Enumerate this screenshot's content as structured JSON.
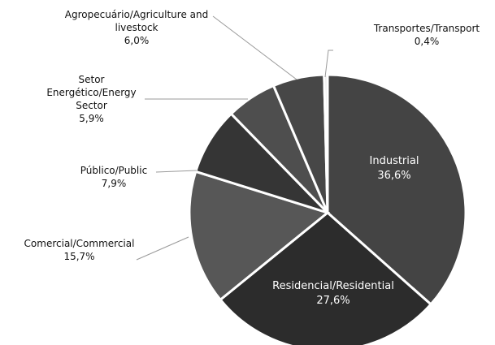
{
  "chart_data": {
    "type": "pie",
    "categories": [
      "Industrial",
      "Residencial/Residential",
      "Comercial/Commercial",
      "Público/Public",
      "Setor Energético/Energy Sector",
      "Agropecuário/Agriculture and livestock",
      "Transportes/Transport"
    ],
    "values": [
      36.6,
      27.6,
      15.7,
      7.9,
      5.9,
      6.0,
      0.4
    ],
    "value_labels": [
      "36,6%",
      "27,6%",
      "15,7%",
      "7,9%",
      "5,9%",
      "6,0%",
      "0,4%"
    ],
    "colors": [
      "#444444",
      "#2c2c2c",
      "#575757",
      "#353535",
      "#4e4e4e",
      "#474747",
      "#e8e8e8"
    ]
  }
}
